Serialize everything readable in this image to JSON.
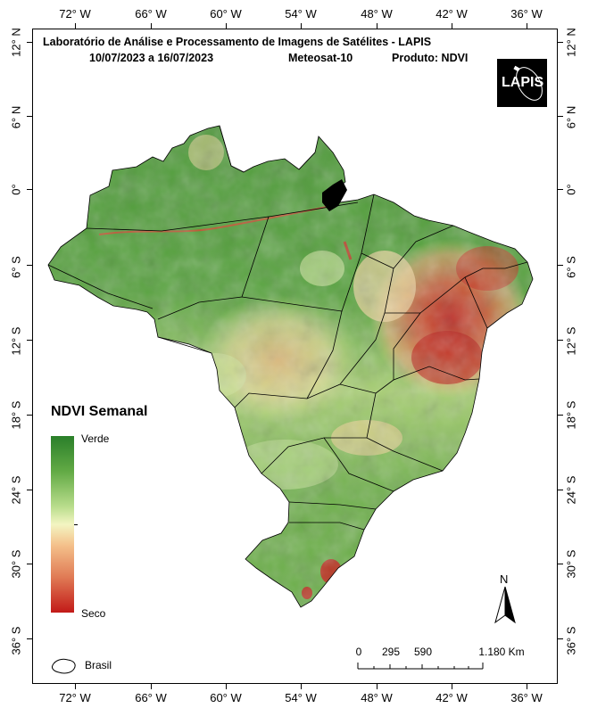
{
  "title": {
    "line1": "Laboratório de Análise e Processamento de Imagens de Satélites - LAPIS",
    "period": "10/07/2023  a  16/07/2023",
    "satellite": "Meteosat-10",
    "product": "Produto: NDVI"
  },
  "logo": {
    "text": "LAPIS"
  },
  "longitude_labels": [
    "72° W",
    "66° W",
    "60° W",
    "54° W",
    "48° W",
    "42° W",
    "36° W"
  ],
  "latitude_labels": [
    "12° N",
    "6° N",
    "0°",
    "6° S",
    "12° S",
    "18° S",
    "24° S",
    "30° S",
    "36° S"
  ],
  "legend": {
    "title": "NDVI Semanal",
    "top_label": "Verde",
    "bottom_label": "Seco",
    "colors": [
      "#2a7f2a",
      "#62aa45",
      "#b9dd8c",
      "#f3f5c2",
      "#f4c08a",
      "#e07a55",
      "#c21a18"
    ]
  },
  "boundary_legend": {
    "label": "Brasil"
  },
  "scale_bar": {
    "labels": [
      "0",
      "295",
      "590",
      "1.180 Km"
    ]
  },
  "north_arrow": {
    "label": "N"
  }
}
